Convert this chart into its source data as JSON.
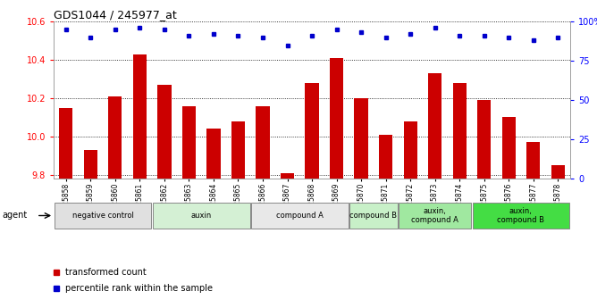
{
  "title": "GDS1044 / 245977_at",
  "samples": [
    "GSM25858",
    "GSM25859",
    "GSM25860",
    "GSM25861",
    "GSM25862",
    "GSM25863",
    "GSM25864",
    "GSM25865",
    "GSM25866",
    "GSM25867",
    "GSM25868",
    "GSM25869",
    "GSM25870",
    "GSM25871",
    "GSM25872",
    "GSM25873",
    "GSM25874",
    "GSM25875",
    "GSM25876",
    "GSM25877",
    "GSM25878"
  ],
  "bar_values": [
    10.15,
    9.93,
    10.21,
    10.43,
    10.27,
    10.16,
    10.04,
    10.08,
    10.16,
    9.81,
    10.28,
    10.41,
    10.2,
    10.01,
    10.08,
    10.33,
    10.28,
    10.19,
    10.1,
    9.97,
    9.85
  ],
  "dot_values": [
    95,
    90,
    95,
    96,
    95,
    91,
    92,
    91,
    90,
    85,
    91,
    95,
    93,
    90,
    92,
    96,
    91,
    91,
    90,
    88,
    90
  ],
  "ylim_left": [
    9.78,
    10.6
  ],
  "ylim_right": [
    0,
    100
  ],
  "yticks_left": [
    9.8,
    10.0,
    10.2,
    10.4,
    10.6
  ],
  "yticks_right": [
    0,
    25,
    50,
    75,
    100
  ],
  "bar_color": "#cc0000",
  "dot_color": "#0000cc",
  "groups": [
    {
      "label": "negative control",
      "start": 0,
      "end": 3,
      "color": "#e0e0e0"
    },
    {
      "label": "auxin",
      "start": 4,
      "end": 7,
      "color": "#d4f0d4"
    },
    {
      "label": "compound A",
      "start": 8,
      "end": 11,
      "color": "#e8e8e8"
    },
    {
      "label": "compound B",
      "start": 12,
      "end": 13,
      "color": "#c8f0c8"
    },
    {
      "label": "auxin,\ncompound A",
      "start": 14,
      "end": 16,
      "color": "#a0e8a0"
    },
    {
      "label": "auxin,\ncompound B",
      "start": 17,
      "end": 20,
      "color": "#44dd44"
    }
  ],
  "legend_bar_label": "transformed count",
  "legend_dot_label": "percentile rank within the sample",
  "agent_label": "agent"
}
